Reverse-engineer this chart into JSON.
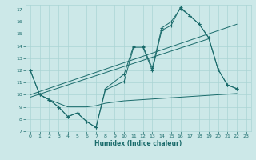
{
  "xlabel": "Humidex (Indice chaleur)",
  "bg_color": "#cce8e8",
  "grid_color": "#aad4d4",
  "line_color": "#1a6b6b",
  "xlim": [
    -0.5,
    23.5
  ],
  "ylim": [
    7,
    17.4
  ],
  "xticks": [
    0,
    1,
    2,
    3,
    4,
    5,
    6,
    7,
    8,
    9,
    10,
    11,
    12,
    13,
    14,
    15,
    16,
    17,
    18,
    19,
    20,
    21,
    22,
    23
  ],
  "yticks": [
    7,
    8,
    9,
    10,
    11,
    12,
    13,
    14,
    15,
    16,
    17
  ],
  "curve1_x": [
    0,
    1,
    2,
    3,
    4,
    5,
    6,
    7,
    8,
    10,
    11,
    12,
    13,
    14,
    15,
    16,
    17,
    18,
    19,
    20,
    21,
    22
  ],
  "curve1_y": [
    12,
    10,
    9.6,
    9.0,
    8.2,
    8.5,
    7.8,
    7.3,
    10.4,
    11.1,
    13.9,
    13.9,
    12.0,
    15.3,
    15.7,
    17.2,
    16.5,
    15.8,
    14.7,
    12.1,
    10.8,
    10.5
  ],
  "curve2_x": [
    0,
    1,
    2,
    3,
    4,
    5,
    6,
    7,
    8,
    10,
    11,
    12,
    13,
    14,
    15,
    16,
    17,
    18,
    19,
    20,
    21,
    22
  ],
  "curve2_y": [
    12,
    10,
    9.6,
    9.0,
    8.2,
    8.5,
    7.8,
    7.3,
    10.5,
    11.7,
    14.0,
    14.0,
    12.2,
    15.5,
    16.0,
    17.1,
    16.5,
    15.8,
    14.7,
    12.1,
    10.8,
    10.5
  ],
  "trend1_x": [
    0,
    22
  ],
  "trend1_y": [
    10.0,
    15.8
  ],
  "trend2_x": [
    0,
    19
  ],
  "trend2_y": [
    9.8,
    14.6
  ],
  "lower_x": [
    1,
    2,
    3,
    4,
    5,
    6,
    7,
    8,
    9,
    10,
    11,
    12,
    13,
    14,
    15,
    16,
    17,
    18,
    19,
    20,
    21,
    22
  ],
  "lower_y": [
    10.0,
    9.6,
    9.3,
    9.0,
    9.0,
    9.0,
    9.1,
    9.3,
    9.4,
    9.5,
    9.55,
    9.6,
    9.65,
    9.7,
    9.75,
    9.8,
    9.85,
    9.9,
    9.95,
    10.0,
    10.05,
    10.1
  ]
}
